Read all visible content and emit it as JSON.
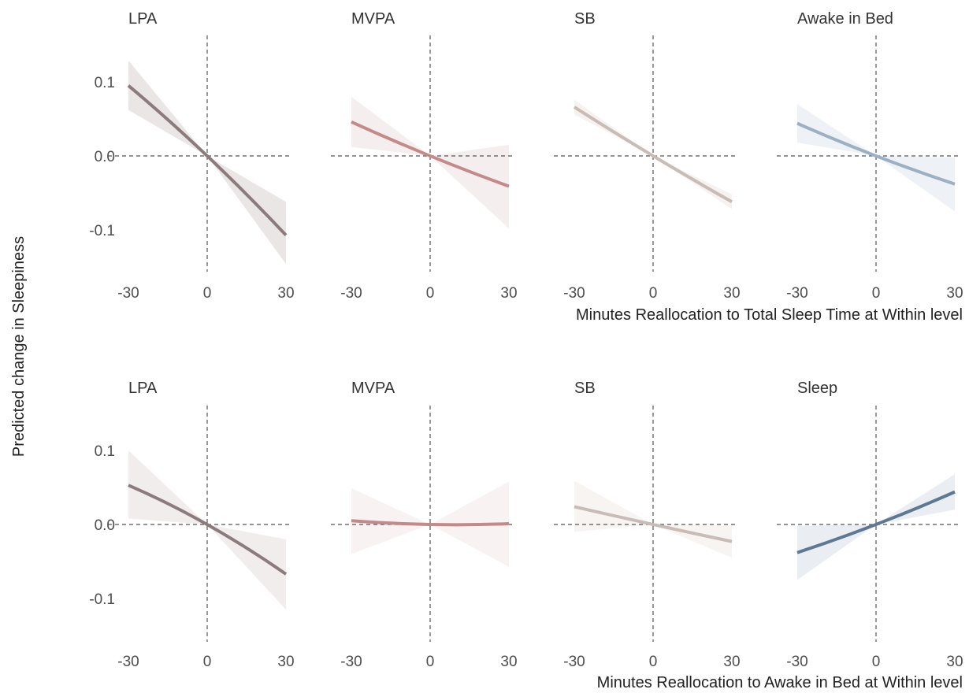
{
  "chart_data": [
    {
      "type": "line",
      "ylabel": "Predicted change in Sleepiness",
      "xlabel": "Minutes Reallocation to Total Sleep Time at Within level",
      "xlim": [
        -30,
        30
      ],
      "ylim": [
        -0.16,
        0.16
      ],
      "xticks": [
        "-30",
        "0",
        "30"
      ],
      "yticks": [
        "0.1",
        "0.0",
        "-0.1"
      ],
      "xticks_values": [
        -30,
        0,
        30
      ],
      "yticks_values": [
        0.1,
        0.0,
        -0.1
      ],
      "grid": false,
      "panels": [
        {
          "title": "LPA",
          "color": "#8c7b7d",
          "band_color": "#ebe6e6",
          "x": [
            -30,
            0,
            30
          ],
          "y": [
            0.095,
            0.0,
            -0.107
          ],
          "lower": [
            0.062,
            0.0,
            -0.146
          ],
          "upper": [
            0.129,
            0.0,
            -0.062
          ]
        },
        {
          "title": "MVPA",
          "color": "#c48a8a",
          "band_color": "#f5eeee",
          "x": [
            -30,
            0,
            30
          ],
          "y": [
            0.046,
            0.0,
            -0.041
          ],
          "lower": [
            0.012,
            0.0,
            -0.098
          ],
          "upper": [
            0.08,
            0.0,
            0.015
          ]
        },
        {
          "title": "SB",
          "color": "#c9bbb6",
          "band_color": "#f6f2f0",
          "x": [
            -30,
            0,
            30
          ],
          "y": [
            0.066,
            0.0,
            -0.062
          ],
          "lower": [
            0.056,
            0.0,
            -0.072
          ],
          "upper": [
            0.076,
            0.0,
            -0.052
          ]
        },
        {
          "title": "Awake in Bed",
          "color": "#9cb0c4",
          "band_color": "#eef1f5",
          "x": [
            -30,
            0,
            30
          ],
          "y": [
            0.044,
            0.0,
            -0.038
          ],
          "lower": [
            0.018,
            0.0,
            -0.075
          ],
          "upper": [
            0.07,
            0.0,
            -0.002
          ]
        }
      ]
    },
    {
      "type": "line",
      "ylabel": "Predicted change in Sleepiness",
      "xlabel": "Minutes Reallocation to Awake in Bed at Within level",
      "xlim": [
        -30,
        30
      ],
      "ylim": [
        -0.16,
        0.16
      ],
      "xticks": [
        "-30",
        "0",
        "30"
      ],
      "yticks": [
        "0.1",
        "0.0",
        "-0.1"
      ],
      "xticks_values": [
        -30,
        0,
        30
      ],
      "yticks_values": [
        0.1,
        0.0,
        -0.1
      ],
      "grid": false,
      "panels": [
        {
          "title": "LPA",
          "color": "#8c7b7d",
          "band_color": "#f1eded",
          "x": [
            -30,
            0,
            30
          ],
          "y": [
            0.053,
            0.0,
            -0.067
          ],
          "lower": [
            0.008,
            0.0,
            -0.115
          ],
          "upper": [
            0.1,
            0.0,
            -0.02
          ]
        },
        {
          "title": "MVPA",
          "color": "#c48a8a",
          "band_color": "#f8f2f2",
          "x": [
            -30,
            0,
            30
          ],
          "y": [
            0.005,
            0.0,
            0.001
          ],
          "lower": [
            -0.04,
            0.0,
            -0.057
          ],
          "upper": [
            0.049,
            0.0,
            0.058
          ]
        },
        {
          "title": "SB",
          "color": "#c9bbb6",
          "band_color": "#f8f4f2",
          "x": [
            -30,
            0,
            30
          ],
          "y": [
            0.024,
            0.0,
            -0.023
          ],
          "lower": [
            -0.01,
            0.0,
            -0.045
          ],
          "upper": [
            0.059,
            0.0,
            -0.001
          ]
        },
        {
          "title": "Sleep",
          "color": "#5c7892",
          "band_color": "#eaeef3",
          "x": [
            -30,
            0,
            30
          ],
          "y": [
            -0.038,
            0.0,
            0.044
          ],
          "lower": [
            -0.075,
            0.0,
            0.02
          ],
          "upper": [
            -0.002,
            0.0,
            0.068
          ]
        }
      ]
    }
  ]
}
